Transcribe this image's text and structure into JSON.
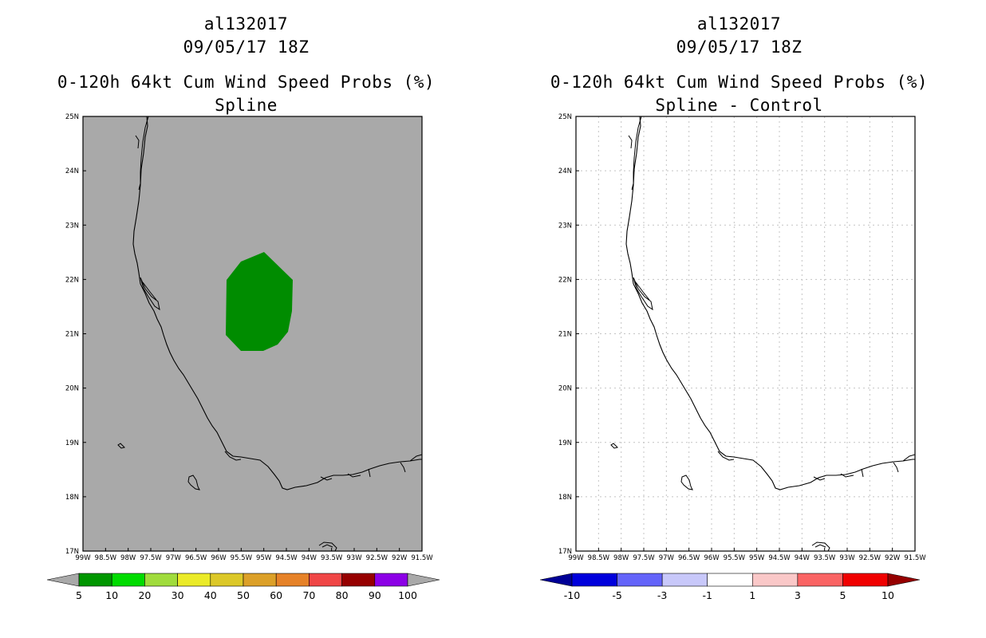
{
  "left_panel": {
    "storm_id": "al132017",
    "datetime": "09/05/17 18Z",
    "product": "0-120h 64kt Cum Wind Speed Probs (%)",
    "subtitle": "Spline",
    "background_color": "#a9a9a9",
    "probability_region": {
      "color": "#008c00",
      "category": "5-10%"
    },
    "colorbar": {
      "colors": [
        "#009600",
        "#00dc00",
        "#a0dc3c",
        "#ebeb28",
        "#dcc828",
        "#dca028",
        "#e68228",
        "#f04646",
        "#960000",
        "#8c00e6"
      ],
      "ticks": [
        "5",
        "10",
        "20",
        "30",
        "40",
        "50",
        "60",
        "70",
        "80",
        "90",
        "100"
      ]
    }
  },
  "right_panel": {
    "storm_id": "al132017",
    "datetime": "09/05/17 18Z",
    "product": "0-120h 64kt Cum Wind Speed Probs (%)",
    "subtitle": "Spline - Control",
    "background_color": "#ffffff",
    "colorbar": {
      "colors": [
        "#0000dc",
        "#6464fa",
        "#c8c8fa",
        "#ffffff",
        "#fac8c8",
        "#fa6464",
        "#f00000"
      ],
      "left_arrow_color": "#000096",
      "right_arrow_color": "#960000",
      "ticks": [
        "-10",
        "-5",
        "-3",
        "-1",
        "1",
        "3",
        "5",
        "10"
      ]
    }
  },
  "map": {
    "lat_labels": [
      "25N",
      "24N",
      "23N",
      "22N",
      "21N",
      "20N",
      "19N",
      "18N",
      "17N"
    ],
    "lon_labels": [
      "99W",
      "98.5W",
      "98W",
      "97.5W",
      "97W",
      "96.5W",
      "96W",
      "95.5W",
      "95W",
      "94.5W",
      "94W",
      "93.5W",
      "93W",
      "92.5W",
      "92W",
      "91.5W"
    ]
  }
}
